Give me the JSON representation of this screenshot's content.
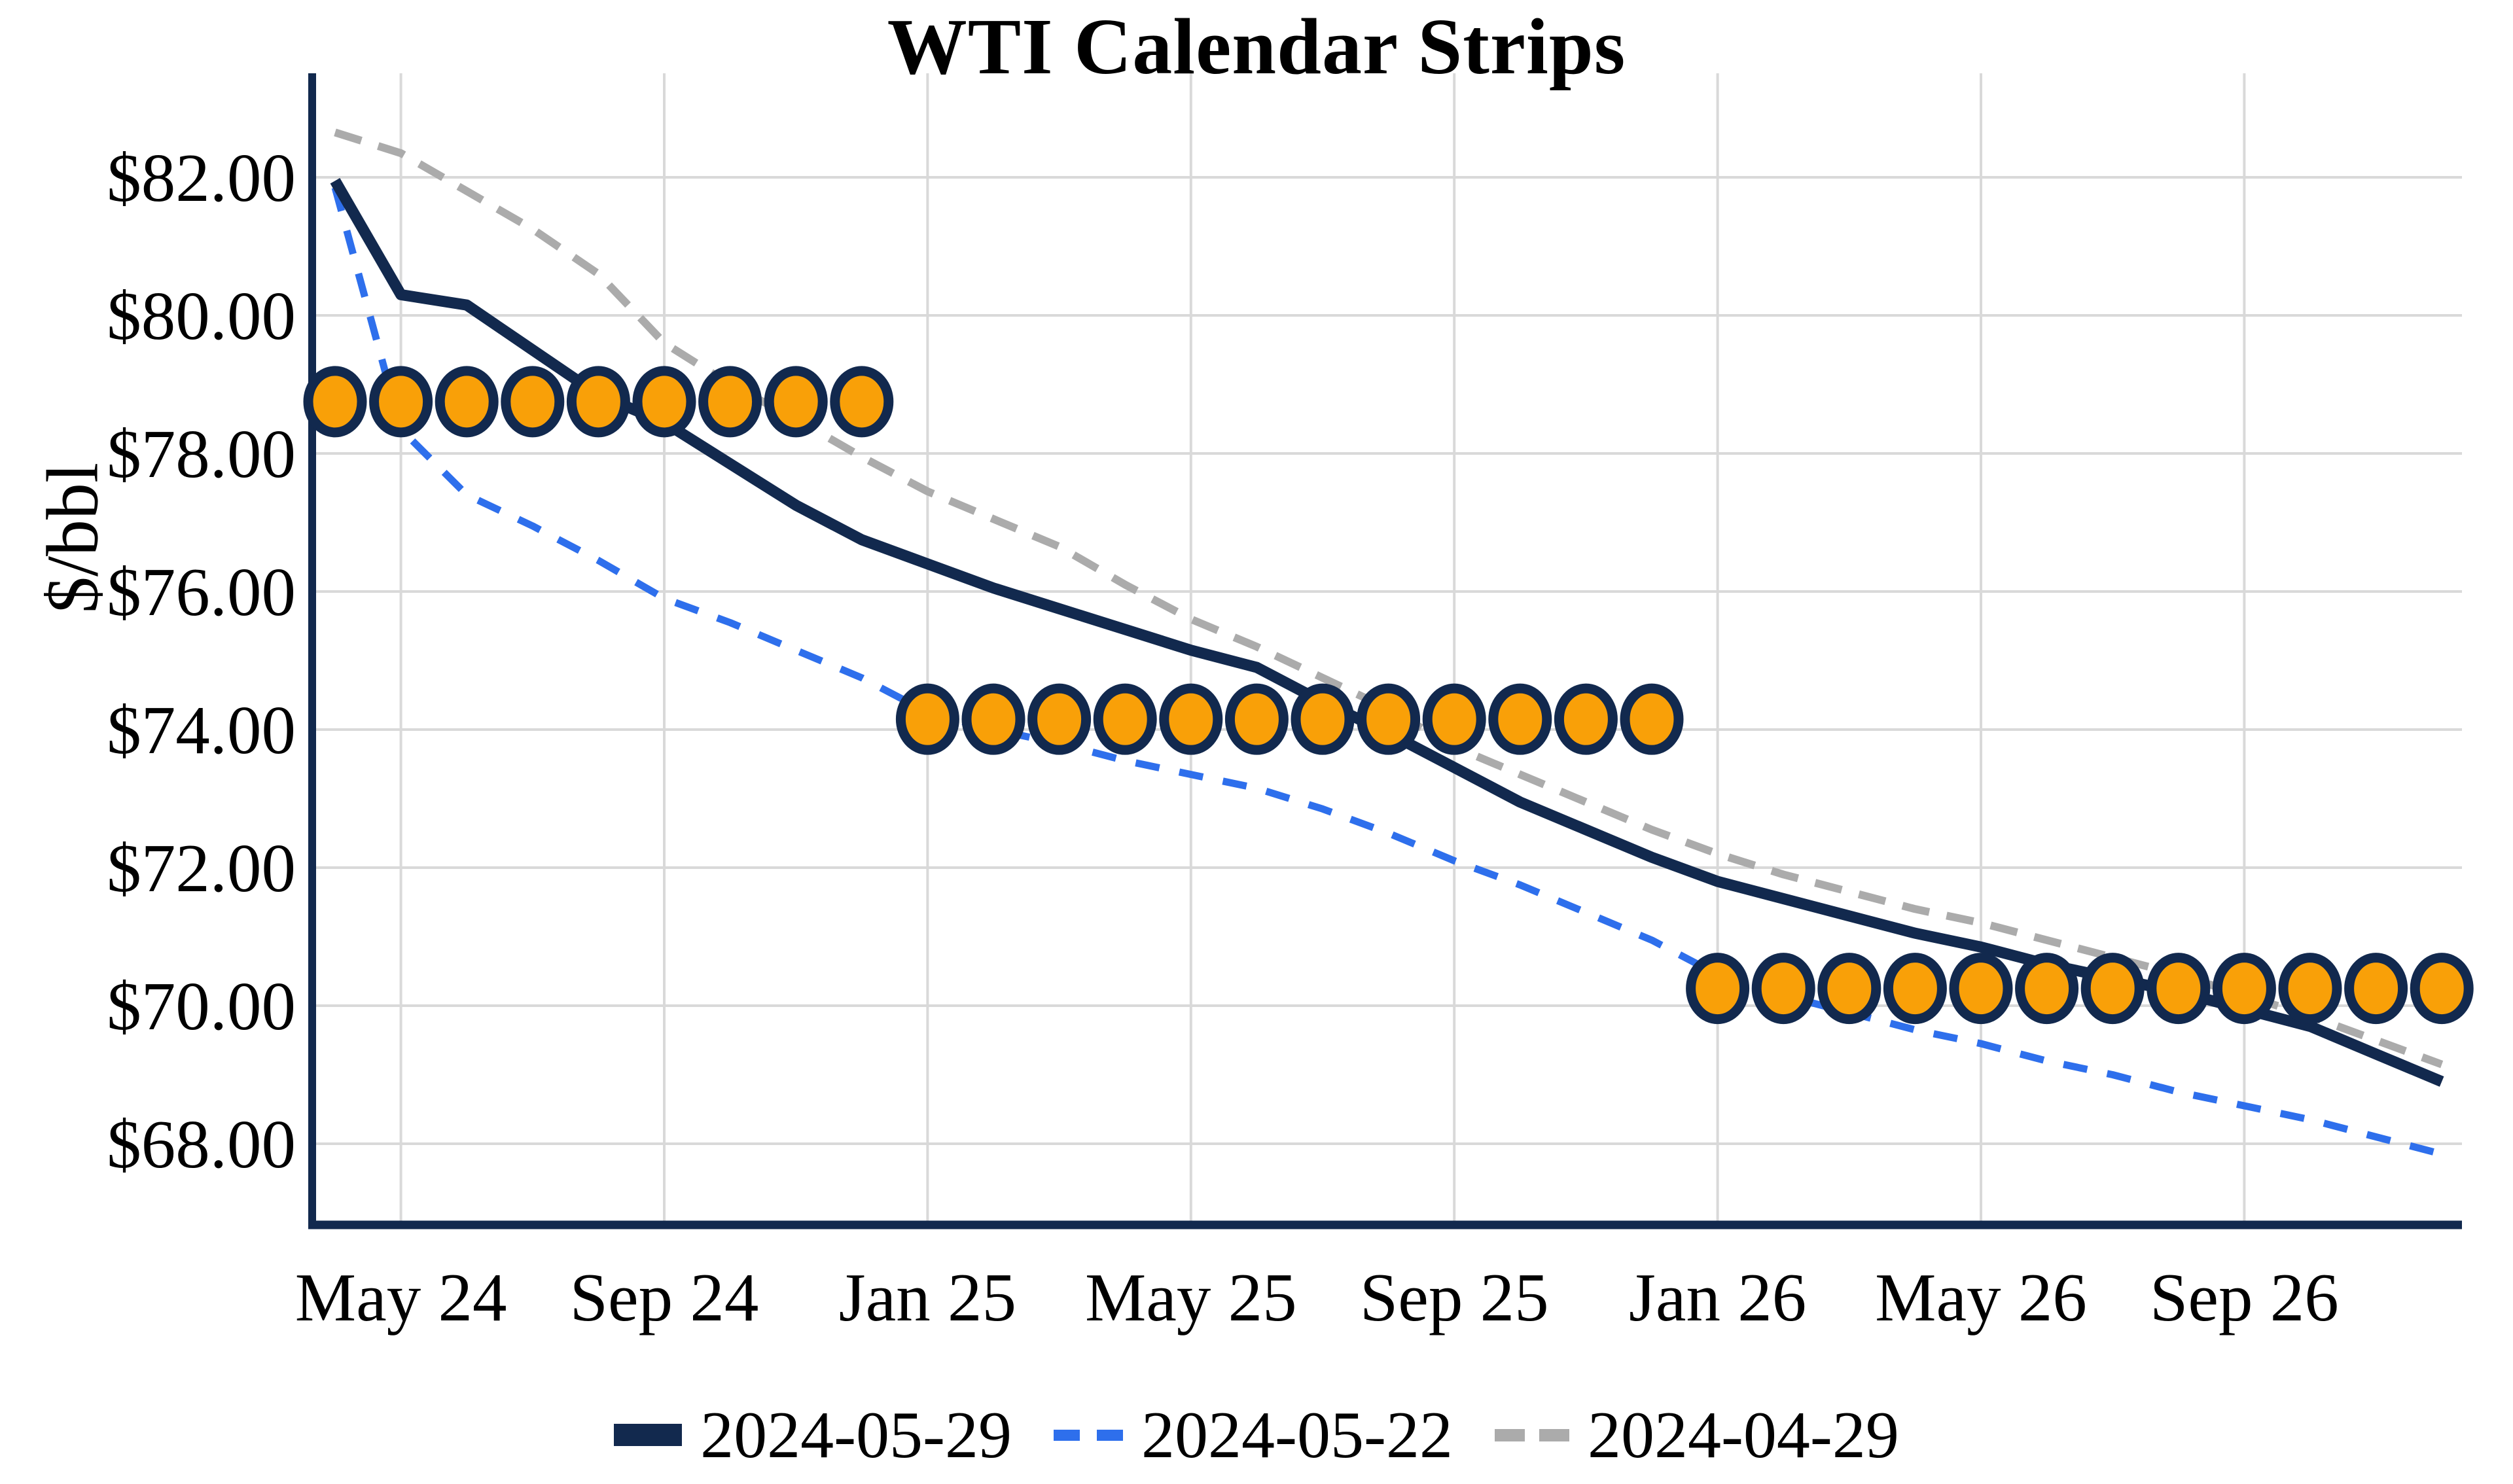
{
  "title": "WTI Calendar Strips",
  "ylabel": "$/bbl",
  "colors": {
    "navy": "#12294e",
    "blue": "#2e6fec",
    "gray": "#ababab",
    "orange": "#f9a008",
    "gridline": "#d9d9d9"
  },
  "chart_data": {
    "type": "line",
    "title": "WTI Calendar Strips",
    "xlabel": "",
    "ylabel": "$/bbl",
    "n_points": 33,
    "x_range_note": "monthly futures contracts, first point one month left of May 24 tick, last point Dec 26",
    "x_tick_labels": [
      "May 24",
      "Sep 24",
      "Jan 25",
      "May 25",
      "Sep 25",
      "Jan 26",
      "May 26",
      "Sep 26"
    ],
    "x_tick_positions": [
      1,
      5,
      9,
      13,
      17,
      21,
      25,
      29
    ],
    "y_tick_labels": [
      "$82.00",
      "$80.00",
      "$78.00",
      "$76.00",
      "$74.00",
      "$72.00",
      "$70.00",
      "$68.00"
    ],
    "y_tick_values": [
      82,
      80,
      78,
      76,
      74,
      72,
      70,
      68
    ],
    "ylim": [
      66.8,
      83.5
    ],
    "grid": true,
    "legend_position": "bottom",
    "series": [
      {
        "name": "2024-05-29",
        "style": "solid",
        "color": "#12294e",
        "values": [
          81.95,
          80.3,
          80.15,
          79.5,
          78.85,
          78.45,
          77.85,
          77.25,
          76.75,
          76.4,
          76.05,
          75.75,
          75.45,
          75.15,
          74.9,
          74.4,
          73.95,
          73.45,
          72.95,
          72.55,
          72.15,
          71.8,
          71.55,
          71.3,
          71.05,
          70.85,
          70.6,
          70.4,
          70.2,
          69.95,
          69.7,
          69.3,
          68.9
        ]
      },
      {
        "name": "2024-05-22",
        "style": "dashed",
        "color": "#2e6fec",
        "values": [
          81.85,
          78.35,
          77.4,
          76.95,
          76.45,
          75.9,
          75.55,
          75.15,
          74.75,
          74.25,
          74.0,
          73.8,
          73.55,
          73.35,
          73.15,
          72.85,
          72.5,
          72.1,
          71.75,
          71.35,
          70.95,
          70.45,
          70.15,
          69.9,
          69.65,
          69.45,
          69.2,
          69.0,
          68.75,
          68.55,
          68.35,
          68.1,
          67.85
        ]
      },
      {
        "name": "2024-04-29",
        "style": "dashed",
        "color": "#ababab",
        "values": [
          82.65,
          82.35,
          81.8,
          81.25,
          80.6,
          79.6,
          79.0,
          78.5,
          77.95,
          77.45,
          77.05,
          76.65,
          76.1,
          75.6,
          75.2,
          74.75,
          74.3,
          73.75,
          73.35,
          72.95,
          72.55,
          72.2,
          71.9,
          71.65,
          71.4,
          71.2,
          70.95,
          70.7,
          70.45,
          70.15,
          69.85,
          69.5,
          69.15
        ]
      }
    ],
    "calendar_strip_dots": [
      {
        "value": 78.75,
        "from_index": 0,
        "to_index": 8,
        "count": 9
      },
      {
        "value": 74.15,
        "from_index": 9,
        "to_index": 20,
        "count": 12
      },
      {
        "value": 70.25,
        "from_index": 21,
        "to_index": 32,
        "count": 12
      }
    ],
    "marker_color": "#f9a008",
    "marker_ring_color": "#12294e"
  },
  "legend": {
    "items": [
      {
        "label": "2024-05-29"
      },
      {
        "label": "2024-05-22"
      },
      {
        "label": "2024-04-29"
      }
    ]
  }
}
